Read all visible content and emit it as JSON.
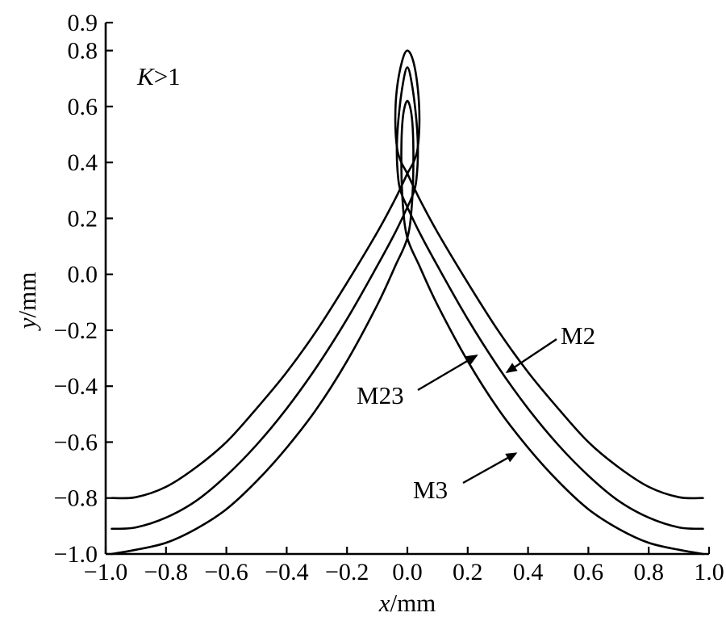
{
  "chart_data": {
    "type": "line",
    "annotation": {
      "italic": "K",
      "rest": ">1"
    },
    "xlabel": {
      "italic": "x",
      "unit": "/mm"
    },
    "ylabel": {
      "italic": "y",
      "unit": "/mm"
    },
    "xlim": [
      -1.0,
      1.0
    ],
    "ylim": [
      -1.0,
      0.9
    ],
    "xticks": [
      -1.0,
      -0.8,
      -0.6,
      -0.4,
      -0.2,
      0.0,
      0.2,
      0.4,
      0.6,
      0.8,
      1.0
    ],
    "xtick_labels": [
      "−1.0",
      "−0.8",
      "−0.6",
      "−0.4",
      "−0.2",
      "0.0",
      "0.2",
      "0.4",
      "0.6",
      "0.8",
      "1.0"
    ],
    "yticks": [
      -1.0,
      -0.8,
      -0.6,
      -0.4,
      -0.2,
      0.0,
      0.2,
      0.4,
      0.6,
      0.8,
      0.9
    ],
    "ytick_labels": [
      "−1.0",
      "−0.8",
      "−0.6",
      "−0.4",
      "−0.2",
      "0.0",
      "0.2",
      "0.4",
      "0.6",
      "0.8",
      "0.9"
    ],
    "grid": false,
    "series": [
      {
        "name": "M2",
        "points": [
          [
            -0.98,
            -0.8
          ],
          [
            -0.9,
            -0.797
          ],
          [
            -0.8,
            -0.76
          ],
          [
            -0.7,
            -0.69
          ],
          [
            -0.6,
            -0.6
          ],
          [
            -0.5,
            -0.48
          ],
          [
            -0.4,
            -0.35
          ],
          [
            -0.3,
            -0.2
          ],
          [
            -0.2,
            -0.03
          ],
          [
            -0.1,
            0.15
          ],
          [
            -0.04,
            0.27
          ],
          [
            0.0,
            0.36
          ],
          [
            0.02,
            0.4
          ],
          [
            0.034,
            0.45
          ],
          [
            0.04,
            0.55
          ],
          [
            0.035,
            0.66
          ],
          [
            0.02,
            0.76
          ],
          [
            0.0,
            0.8
          ],
          [
            -0.018,
            0.76
          ],
          [
            -0.035,
            0.66
          ],
          [
            -0.04,
            0.55
          ],
          [
            -0.034,
            0.45
          ],
          [
            -0.02,
            0.4
          ],
          [
            0.0,
            0.36
          ],
          [
            0.04,
            0.27
          ],
          [
            0.1,
            0.15
          ],
          [
            0.2,
            -0.03
          ],
          [
            0.3,
            -0.2
          ],
          [
            0.4,
            -0.35
          ],
          [
            0.5,
            -0.48
          ],
          [
            0.6,
            -0.6
          ],
          [
            0.7,
            -0.69
          ],
          [
            0.8,
            -0.76
          ],
          [
            0.9,
            -0.797
          ],
          [
            0.98,
            -0.8
          ]
        ]
      },
      {
        "name": "M23",
        "points": [
          [
            -0.98,
            -0.91
          ],
          [
            -0.9,
            -0.905
          ],
          [
            -0.8,
            -0.87
          ],
          [
            -0.7,
            -0.81
          ],
          [
            -0.6,
            -0.72
          ],
          [
            -0.5,
            -0.61
          ],
          [
            -0.4,
            -0.48
          ],
          [
            -0.3,
            -0.33
          ],
          [
            -0.2,
            -0.16
          ],
          [
            -0.1,
            0.03
          ],
          [
            -0.04,
            0.15
          ],
          [
            0.0,
            0.24
          ],
          [
            0.02,
            0.29
          ],
          [
            0.03,
            0.34
          ],
          [
            0.035,
            0.44
          ],
          [
            0.03,
            0.55
          ],
          [
            0.015,
            0.68
          ],
          [
            0.0,
            0.74
          ],
          [
            -0.015,
            0.68
          ],
          [
            -0.03,
            0.55
          ],
          [
            -0.035,
            0.44
          ],
          [
            -0.03,
            0.34
          ],
          [
            -0.02,
            0.29
          ],
          [
            0.0,
            0.24
          ],
          [
            0.04,
            0.15
          ],
          [
            0.1,
            0.03
          ],
          [
            0.2,
            -0.16
          ],
          [
            0.3,
            -0.33
          ],
          [
            0.4,
            -0.48
          ],
          [
            0.5,
            -0.61
          ],
          [
            0.6,
            -0.72
          ],
          [
            0.7,
            -0.81
          ],
          [
            0.8,
            -0.87
          ],
          [
            0.9,
            -0.905
          ],
          [
            0.98,
            -0.91
          ]
        ]
      },
      {
        "name": "M3",
        "points": [
          [
            -0.98,
            -1.0
          ],
          [
            -0.9,
            -0.985
          ],
          [
            -0.8,
            -0.96
          ],
          [
            -0.7,
            -0.91
          ],
          [
            -0.6,
            -0.84
          ],
          [
            -0.5,
            -0.74
          ],
          [
            -0.4,
            -0.62
          ],
          [
            -0.3,
            -0.48
          ],
          [
            -0.2,
            -0.31
          ],
          [
            -0.1,
            -0.11
          ],
          [
            -0.04,
            0.03
          ],
          [
            0.0,
            0.13
          ],
          [
            0.015,
            0.25
          ],
          [
            0.02,
            0.42
          ],
          [
            0.015,
            0.56
          ],
          [
            0.0,
            0.62
          ],
          [
            -0.015,
            0.56
          ],
          [
            -0.02,
            0.42
          ],
          [
            -0.015,
            0.25
          ],
          [
            0.0,
            0.13
          ],
          [
            0.04,
            0.03
          ],
          [
            0.1,
            -0.11
          ],
          [
            0.2,
            -0.31
          ],
          [
            0.3,
            -0.48
          ],
          [
            0.4,
            -0.62
          ],
          [
            0.5,
            -0.74
          ],
          [
            0.6,
            -0.84
          ],
          [
            0.7,
            -0.91
          ],
          [
            0.8,
            -0.96
          ],
          [
            0.9,
            -0.985
          ],
          [
            0.98,
            -1.0
          ]
        ]
      }
    ],
    "callouts": [
      {
        "label": "M2",
        "tip": [
          0.33,
          -0.35
        ]
      },
      {
        "label": "M23",
        "tip": [
          0.23,
          -0.29
        ]
      },
      {
        "label": "M3",
        "tip": [
          0.36,
          -0.64
        ]
      }
    ]
  }
}
